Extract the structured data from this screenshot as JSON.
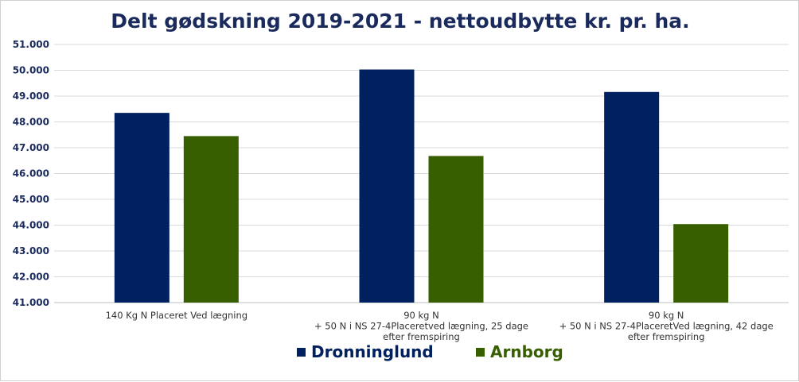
{
  "chart_data": {
    "type": "bar",
    "title": "Delt gødskning 2019-2021 - nettoudbytte kr. pr. ha.",
    "categories": [
      [
        "140 Kg N Placeret Ved lægning"
      ],
      [
        "90 kg N",
        "+ 50 N i NS 27-4Placeretved lægning, 25 dage",
        "efter fremspiring"
      ],
      [
        "90 kg N",
        "+ 50 N i NS 27-4PlaceretVed lægning, 42 dage",
        "efter fremspiring"
      ]
    ],
    "series": [
      {
        "name": "Dronninglund",
        "color": "#002060",
        "values": [
          48350,
          50030,
          49160
        ]
      },
      {
        "name": "Arnborg",
        "color": "#375f00",
        "values": [
          47450,
          46680,
          44040
        ]
      }
    ],
    "ylim": [
      41000,
      51000
    ],
    "yticks": [
      "41.000",
      "42.000",
      "43.000",
      "44.000",
      "45.000",
      "46.000",
      "47.000",
      "48.000",
      "49.000",
      "50.000",
      "51.000"
    ],
    "grid": true,
    "legend_position": "bottom"
  }
}
